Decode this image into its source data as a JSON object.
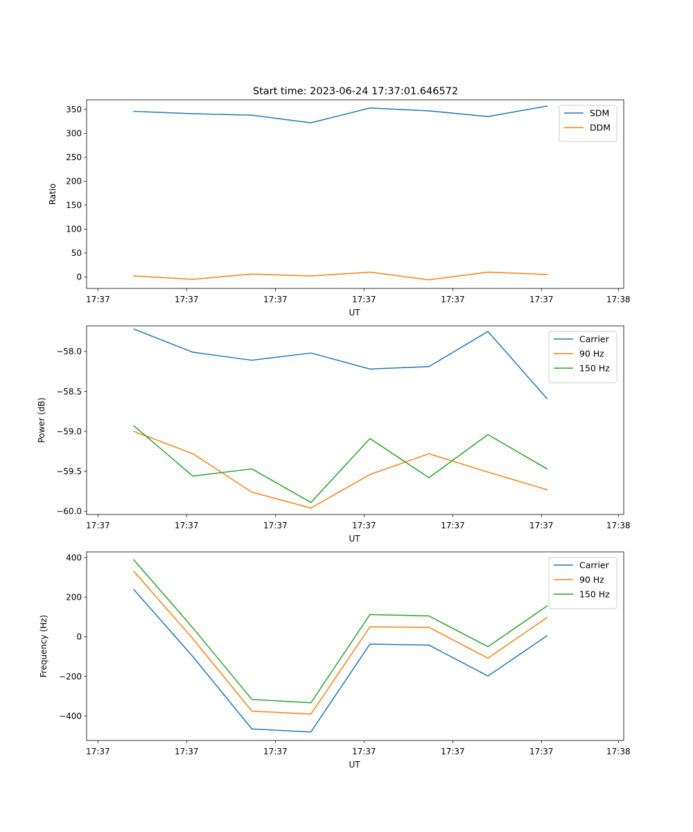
{
  "figure_title": "Start time: 2023-06-24 17:37:01.646572",
  "colors": {
    "blue": "#1f77b4",
    "orange": "#ff7f0e",
    "green": "#2ca02c"
  },
  "chart_data": [
    {
      "type": "line",
      "title": "Start time: 2023-06-24 17:37:01.646572",
      "xlabel": "UT",
      "ylabel": "Ratio",
      "x": [
        1,
        2,
        3,
        4,
        5,
        6,
        7,
        8
      ],
      "xlim": [
        0.2,
        9.3
      ],
      "x_ticks": [
        0.392,
        1.894,
        3.398,
        4.9,
        6.404,
        7.906,
        9.21
      ],
      "x_tick_labels": [
        "17:37",
        "17:37",
        "17:37",
        "17:37",
        "17:37",
        "17:37",
        "17:38"
      ],
      "ylim": [
        -24,
        370
      ],
      "y_ticks": [
        0,
        50,
        100,
        150,
        200,
        250,
        300,
        350
      ],
      "y_tick_labels": [
        "0",
        "50",
        "100",
        "150",
        "200",
        "250",
        "300",
        "350"
      ],
      "legend_position": "top-right",
      "grid": false,
      "series": [
        {
          "name": "SDM",
          "color": "#1f77b4",
          "values": [
            346,
            341,
            338,
            322,
            353,
            347,
            335,
            357
          ]
        },
        {
          "name": "DDM",
          "color": "#ff7f0e",
          "values": [
            2,
            -5,
            6,
            2,
            10,
            -6,
            10,
            5
          ]
        }
      ]
    },
    {
      "type": "line",
      "title": "",
      "xlabel": "UT",
      "ylabel": "Power (dB)",
      "x": [
        1,
        2,
        3,
        4,
        5,
        6,
        7,
        8
      ],
      "xlim": [
        0.2,
        9.3
      ],
      "x_ticks": [
        0.392,
        1.894,
        3.398,
        4.9,
        6.404,
        7.906,
        9.21
      ],
      "x_tick_labels": [
        "17:37",
        "17:37",
        "17:37",
        "17:37",
        "17:37",
        "17:37",
        "17:38"
      ],
      "ylim": [
        -60.04,
        -57.68
      ],
      "y_ticks": [
        -60.0,
        -59.5,
        -59.0,
        -58.5,
        -58.0
      ],
      "y_tick_labels": [
        "−60.0",
        "−59.5",
        "−59.0",
        "−58.5",
        "−58.0"
      ],
      "legend_position": "top-right",
      "grid": false,
      "series": [
        {
          "name": "Carrier",
          "color": "#1f77b4",
          "values": [
            -57.72,
            -58.01,
            -58.11,
            -58.02,
            -58.22,
            -58.19,
            -57.75,
            -58.59
          ]
        },
        {
          "name": "90 Hz",
          "color": "#ff7f0e",
          "values": [
            -59.0,
            -59.28,
            -59.76,
            -59.96,
            -59.54,
            -59.28,
            -59.51,
            -59.73
          ]
        },
        {
          "name": "150 Hz",
          "color": "#2ca02c",
          "values": [
            -58.93,
            -59.56,
            -59.47,
            -59.89,
            -59.09,
            -59.58,
            -59.04,
            -59.47
          ]
        }
      ]
    },
    {
      "type": "line",
      "title": "",
      "xlabel": "UT",
      "ylabel": "Frequency (Hz)",
      "x": [
        1,
        2,
        3,
        4,
        5,
        6,
        7,
        8
      ],
      "xlim": [
        0.2,
        9.3
      ],
      "x_ticks": [
        0.392,
        1.894,
        3.398,
        4.9,
        6.404,
        7.906,
        9.21
      ],
      "x_tick_labels": [
        "17:37",
        "17:37",
        "17:37",
        "17:37",
        "17:37",
        "17:37",
        "17:38"
      ],
      "ylim": [
        -523,
        428
      ],
      "y_ticks": [
        -400,
        -200,
        0,
        200,
        400
      ],
      "y_tick_labels": [
        "−400",
        "−200",
        "0",
        "200",
        "400"
      ],
      "legend_position": "top-right",
      "grid": false,
      "series": [
        {
          "name": "Carrier",
          "color": "#1f77b4",
          "values": [
            238,
            -100,
            -465,
            -480,
            -37,
            -42,
            -198,
            5
          ]
        },
        {
          "name": "90 Hz",
          "color": "#ff7f0e",
          "values": [
            330,
            -10,
            -375,
            -390,
            50,
            48,
            -108,
            97
          ]
        },
        {
          "name": "150 Hz",
          "color": "#2ca02c",
          "values": [
            388,
            45,
            -316,
            -333,
            112,
            105,
            -50,
            155
          ]
        }
      ]
    }
  ]
}
